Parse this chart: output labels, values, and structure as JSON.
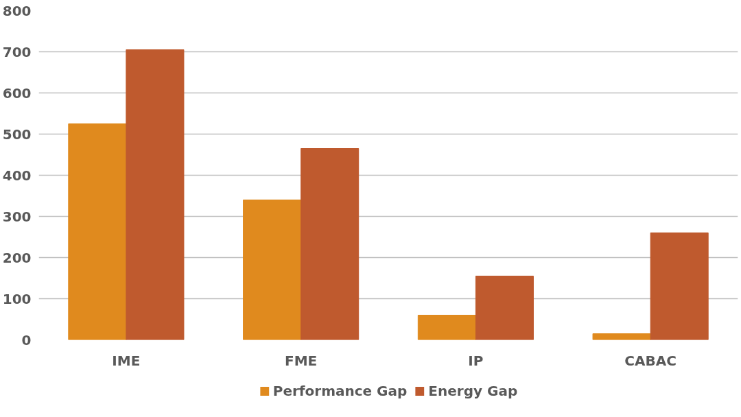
{
  "chart_data": {
    "type": "bar",
    "categories": [
      "IME",
      "FME",
      "IP",
      "CABAC"
    ],
    "series": [
      {
        "name": "Performance Gap",
        "color": "#e08a1e",
        "values": [
          525,
          340,
          60,
          15
        ]
      },
      {
        "name": "Energy Gap",
        "color": "#bf5a2e",
        "values": [
          705,
          465,
          155,
          260
        ]
      }
    ],
    "ylim": [
      0,
      800
    ],
    "yticks": [
      0,
      100,
      200,
      300,
      400,
      500,
      600,
      700,
      800
    ],
    "grid": "y",
    "legend": "bottom"
  }
}
